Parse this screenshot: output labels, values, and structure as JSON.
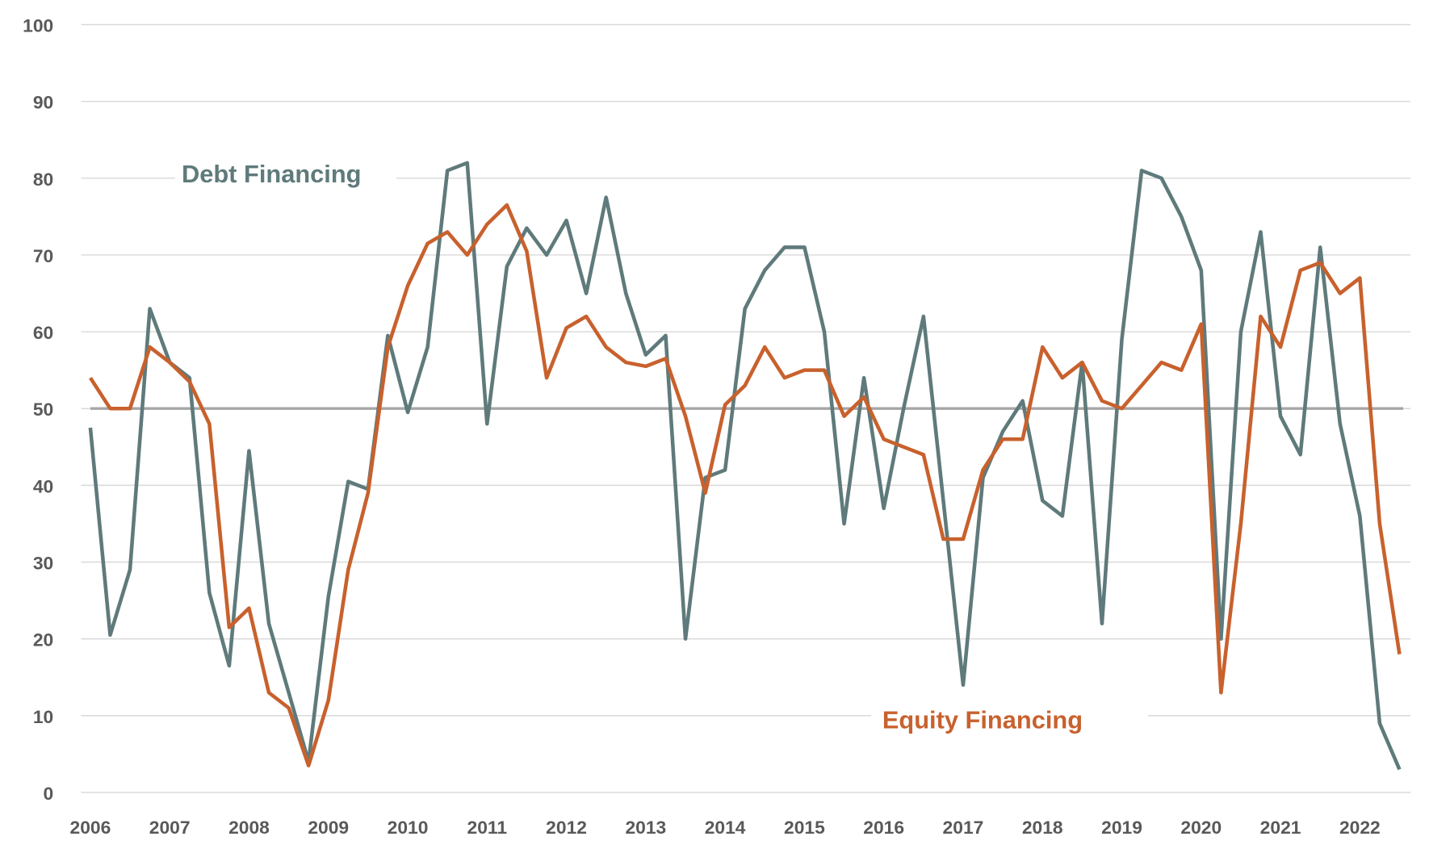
{
  "chart_data": {
    "type": "line",
    "title": "",
    "xlabel": "",
    "ylabel": "",
    "ylim": [
      0,
      100
    ],
    "yticks": [
      0,
      10,
      20,
      30,
      40,
      50,
      60,
      70,
      80,
      90,
      100
    ],
    "xticks": [
      "2006",
      "2007",
      "2008",
      "2009",
      "2010",
      "2011",
      "2012",
      "2013",
      "2014",
      "2015",
      "2016",
      "2017",
      "2018",
      "2019",
      "2020",
      "2021",
      "2022"
    ],
    "x_frequency": "quarterly",
    "x_start": "2006",
    "reference_line": 50,
    "grid": "horizontal",
    "series": [
      {
        "name": "Debt Financing",
        "color": "#5f7a7b",
        "values": [
          47.5,
          20.5,
          29,
          63,
          56,
          54,
          26,
          16.5,
          44.5,
          22,
          13,
          4,
          25.5,
          40.5,
          39.5,
          59.5,
          49.5,
          58,
          81,
          82,
          48,
          68.5,
          73.5,
          70,
          74.5,
          65,
          77.5,
          65,
          57,
          59.5,
          20,
          41,
          42,
          63,
          68,
          71,
          71,
          60,
          35,
          54,
          37,
          50,
          62,
          38,
          14,
          41,
          47,
          51,
          38,
          36,
          56,
          22,
          59,
          81,
          80,
          75,
          68,
          20,
          60,
          73,
          49,
          44,
          71,
          48,
          36,
          9,
          3
        ]
      },
      {
        "name": "Equity Financing",
        "color": "#c8612d",
        "values": [
          54,
          50,
          50,
          58,
          56,
          53.5,
          48,
          21.5,
          24,
          13,
          11,
          3.5,
          12,
          29,
          39,
          58,
          66,
          71.5,
          73,
          70,
          74,
          76.5,
          70.5,
          54,
          60.5,
          62,
          58,
          56,
          55.5,
          56.5,
          49,
          39,
          50.5,
          53,
          58,
          54,
          55,
          55,
          49,
          51.5,
          46,
          45,
          44,
          33,
          33,
          42,
          46,
          46,
          58,
          54,
          56,
          51,
          50,
          53,
          56,
          55,
          61,
          13,
          35,
          62,
          58,
          68,
          69,
          65,
          67,
          35,
          18
        ]
      }
    ]
  }
}
